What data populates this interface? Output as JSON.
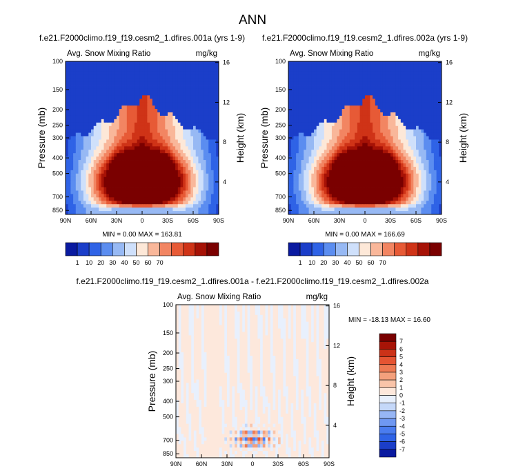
{
  "page": {
    "title": "ANN"
  },
  "colors": {
    "cbar12": [
      "#0a1aa0",
      "#1b3ec9",
      "#2f63e6",
      "#5b8df0",
      "#97b9f4",
      "#cfe0fb",
      "#fde8d8",
      "#f9b79a",
      "#f28562",
      "#e75a36",
      "#cf3317",
      "#a61206",
      "#7a0000"
    ],
    "diff": [
      "#0a1aa0",
      "#1b3ec9",
      "#2f63e6",
      "#4a7cef",
      "#6f98f2",
      "#97b6f5",
      "#c5d8f9",
      "#e8f0fd",
      "#fde8dc",
      "#f9c4a9",
      "#f4a07c",
      "#ee7a53",
      "#e55432",
      "#cc3218",
      "#a81407",
      "#7a0000"
    ]
  },
  "chart_data": [
    {
      "id": "panel-1",
      "type": "heatmap",
      "title": "f.e21.F2000climo.f19_f19.cesm2_1.dfires.001a (yrs 1-9)",
      "left_label": "Avg. Snow Mixing Ratio",
      "right_label": "mg/kg",
      "ylabel": "Pressure (mb)",
      "ylabel_right": "Height (km)",
      "yticks": [
        "100",
        "150",
        "200",
        "250",
        "300",
        "400",
        "500",
        "700",
        "850"
      ],
      "yticks_right": [
        "16",
        "12",
        "8",
        "4"
      ],
      "xticks": [
        "90N",
        "60N",
        "30N",
        "0",
        "30S",
        "60S",
        "90S"
      ],
      "ylim": [
        1000,
        100
      ],
      "xlim": [
        90,
        -90
      ],
      "stats": "MIN =  0.00  MAX = 163.81",
      "colorbar_labels": [
        "1",
        "10",
        "20",
        "30",
        "40",
        "50",
        "60",
        "70"
      ],
      "peak": 163.81
    },
    {
      "id": "panel-2",
      "type": "heatmap",
      "title": "f.e21.F2000climo.f19_f19.cesm2_1.dfires.002a (yrs 1-9)",
      "left_label": "Avg. Snow Mixing Ratio",
      "right_label": "mg/kg",
      "ylabel": "Pressure (mb)",
      "ylabel_right": "Height (km)",
      "yticks": [
        "100",
        "150",
        "200",
        "250",
        "300",
        "400",
        "500",
        "700",
        "850"
      ],
      "yticks_right": [
        "16",
        "12",
        "8",
        "4"
      ],
      "xticks": [
        "90N",
        "60N",
        "30N",
        "0",
        "30S",
        "60S",
        "90S"
      ],
      "ylim": [
        1000,
        100
      ],
      "xlim": [
        90,
        -90
      ],
      "stats": "MIN =  0.00  MAX = 166.69",
      "colorbar_labels": [
        "1",
        "10",
        "20",
        "30",
        "40",
        "50",
        "60",
        "70"
      ],
      "peak": 166.69
    },
    {
      "id": "panel-diff",
      "type": "heatmap",
      "title": "f.e21.F2000climo.f19_f19.cesm2_1.dfires.001a - f.e21.F2000climo.f19_f19.cesm2_1.dfires.002a",
      "left_label": "Avg. Snow Mixing Ratio",
      "right_label": "mg/kg",
      "ylabel": "Pressure (mb)",
      "ylabel_right": "Height (km)",
      "yticks": [
        "100",
        "150",
        "200",
        "250",
        "300",
        "400",
        "500",
        "700",
        "850"
      ],
      "yticks_right": [
        "16",
        "12",
        "8",
        "4"
      ],
      "xticks": [
        "90N",
        "60N",
        "30N",
        "0",
        "30S",
        "60S",
        "90S"
      ],
      "ylim": [
        1000,
        100
      ],
      "xlim": [
        90,
        -90
      ],
      "stats": "MIN = -18.13  MAX =  16.60",
      "colorbar_labels": [
        "7",
        "6",
        "5",
        "4",
        "3",
        "2",
        "1",
        "0",
        "-1",
        "-2",
        "-3",
        "-4",
        "-5",
        "-6",
        "-7"
      ],
      "min": -18.13,
      "max": 16.6
    }
  ]
}
